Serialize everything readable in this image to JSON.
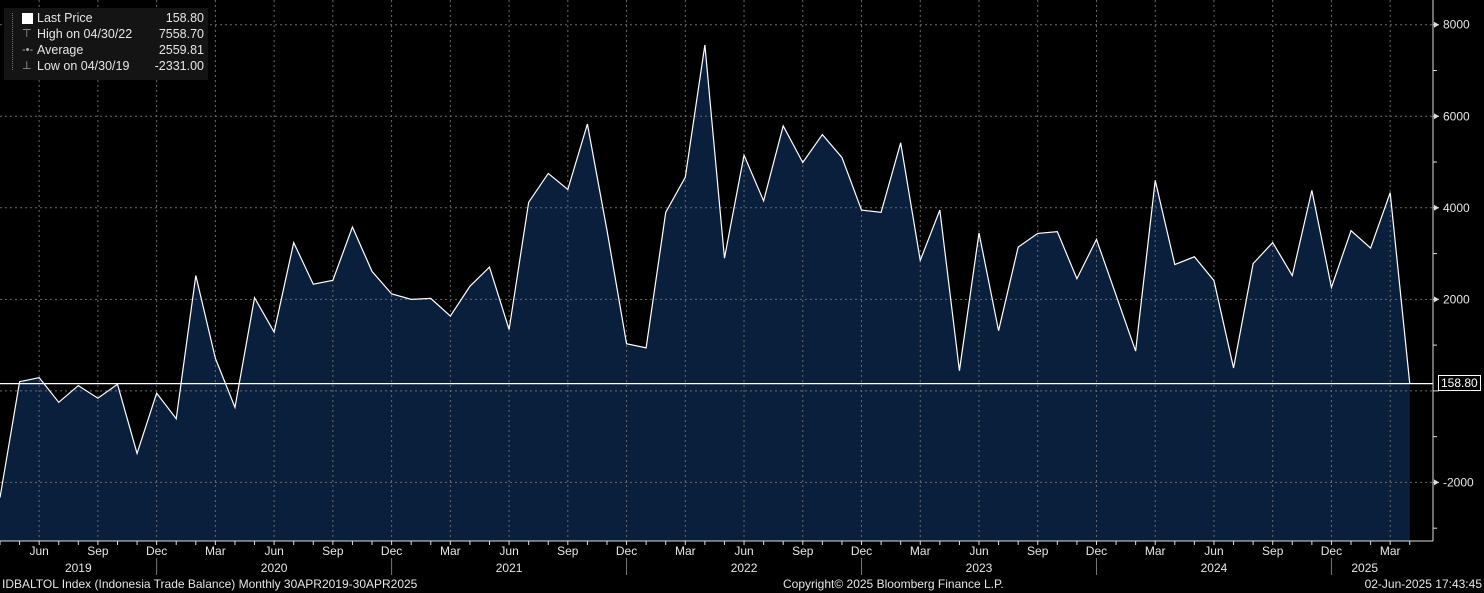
{
  "legend": {
    "items": [
      {
        "label": "Last Price",
        "value": "158.80",
        "icon": "white-square-icon"
      },
      {
        "label": "High on 04/30/22",
        "value": "7558.70",
        "icon": "high-marker-icon"
      },
      {
        "label": "Average",
        "value": "2559.81",
        "icon": "average-marker-icon"
      },
      {
        "label": "Low on 04/30/19",
        "value": "-2331.00",
        "icon": "low-marker-icon"
      }
    ]
  },
  "last_price_label": "158.80",
  "footer": {
    "left": "IDBALTOL Index (Indonesia Trade Balance)  Monthly 30APR2019-30APR2025",
    "center": "Copyright© 2025 Bloomberg Finance L.P.",
    "right": "02-Jun-2025 17:43:45"
  },
  "colors": {
    "fill": "#0a1f3c",
    "line": "#ffffff",
    "background": "#000000",
    "grid": "#6a6a6a"
  },
  "chart_data": {
    "type": "area",
    "title": "Indonesia Trade Balance",
    "series_name": "IDBALTOL Index",
    "start": "2019-04",
    "frequency": "monthly",
    "x": [
      "Apr 2019",
      "May 2019",
      "Jun 2019",
      "Jul 2019",
      "Aug 2019",
      "Sep 2019",
      "Oct 2019",
      "Nov 2019",
      "Dec 2019",
      "Jan 2020",
      "Feb 2020",
      "Mar 2020",
      "Apr 2020",
      "May 2020",
      "Jun 2020",
      "Jul 2020",
      "Aug 2020",
      "Sep 2020",
      "Oct 2020",
      "Nov 2020",
      "Dec 2020",
      "Jan 2021",
      "Feb 2021",
      "Mar 2021",
      "Apr 2021",
      "May 2021",
      "Jun 2021",
      "Jul 2021",
      "Aug 2021",
      "Sep 2021",
      "Oct 2021",
      "Nov 2021",
      "Dec 2021",
      "Jan 2022",
      "Feb 2022",
      "Mar 2022",
      "Apr 2022",
      "May 2022",
      "Jun 2022",
      "Jul 2022",
      "Aug 2022",
      "Sep 2022",
      "Oct 2022",
      "Nov 2022",
      "Dec 2022",
      "Jan 2023",
      "Feb 2023",
      "Mar 2023",
      "Apr 2023",
      "May 2023",
      "Jun 2023",
      "Jul 2023",
      "Aug 2023",
      "Sep 2023",
      "Oct 2023",
      "Nov 2023",
      "Dec 2023",
      "Jan 2024",
      "Feb 2024",
      "Mar 2024",
      "Apr 2024",
      "May 2024",
      "Jun 2024",
      "Jul 2024",
      "Aug 2024",
      "Sep 2024",
      "Oct 2024",
      "Nov 2024",
      "Dec 2024",
      "Jan 2025",
      "Feb 2025",
      "Mar 2025",
      "Apr 2025"
    ],
    "values": [
      -2331,
      200,
      290,
      -250,
      116,
      -160,
      145,
      -1366,
      -50,
      -610,
      2520,
      710,
      -360,
      2035,
      1285,
      3240,
      2330,
      2415,
      3580,
      2610,
      2120,
      2000,
      2020,
      1635,
      2285,
      2705,
      1340,
      4120,
      4750,
      4400,
      5830,
      3510,
      1030,
      940,
      3900,
      4670,
      7558.7,
      2900,
      5150,
      4150,
      5790,
      4990,
      5600,
      5100,
      3950,
      3900,
      5420,
      2850,
      3950,
      440,
      3450,
      1315,
      3140,
      3440,
      3480,
      2450,
      3310,
      2090,
      870,
      4600,
      2760,
      2930,
      2410,
      500,
      2780,
      3240,
      2520,
      4380,
      2260,
      3500,
      3120,
      4330,
      158.8
    ],
    "ylim": [
      -3280,
      8540
    ],
    "yticks": [
      -2000,
      0,
      2000,
      4000,
      6000,
      8000
    ],
    "ytick_labels": [
      "-2000",
      "0",
      "2000",
      "4000",
      "6000",
      "8000"
    ],
    "xtick_labels": [
      {
        "month_index": 2,
        "label": "Jun"
      },
      {
        "month_index": 5,
        "label": "Sep"
      },
      {
        "month_index": 8,
        "label": "Dec"
      },
      {
        "month_index": 11,
        "label": "Mar"
      },
      {
        "month_index": 14,
        "label": "Jun"
      },
      {
        "month_index": 17,
        "label": "Sep"
      },
      {
        "month_index": 20,
        "label": "Dec"
      },
      {
        "month_index": 23,
        "label": "Mar"
      },
      {
        "month_index": 26,
        "label": "Jun"
      },
      {
        "month_index": 29,
        "label": "Sep"
      },
      {
        "month_index": 32,
        "label": "Dec"
      },
      {
        "month_index": 35,
        "label": "Mar"
      },
      {
        "month_index": 38,
        "label": "Jun"
      },
      {
        "month_index": 41,
        "label": "Sep"
      },
      {
        "month_index": 44,
        "label": "Dec"
      },
      {
        "month_index": 47,
        "label": "Mar"
      },
      {
        "month_index": 50,
        "label": "Jun"
      },
      {
        "month_index": 53,
        "label": "Sep"
      },
      {
        "month_index": 56,
        "label": "Dec"
      },
      {
        "month_index": 59,
        "label": "Mar"
      },
      {
        "month_index": 62,
        "label": "Jun"
      },
      {
        "month_index": 65,
        "label": "Sep"
      },
      {
        "month_index": 68,
        "label": "Dec"
      },
      {
        "month_index": 71,
        "label": "Mar"
      }
    ],
    "year_labels": [
      {
        "month_index": 4,
        "label": "2019"
      },
      {
        "month_index": 14,
        "label": "2020"
      },
      {
        "month_index": 26,
        "label": "2021"
      },
      {
        "month_index": 38,
        "label": "2022"
      },
      {
        "month_index": 50,
        "label": "2023"
      },
      {
        "month_index": 62,
        "label": "2024"
      },
      {
        "month_index": 69.7,
        "label": "2025"
      }
    ],
    "last_value": 158.8,
    "grid": true,
    "legend_position": "top-left"
  }
}
